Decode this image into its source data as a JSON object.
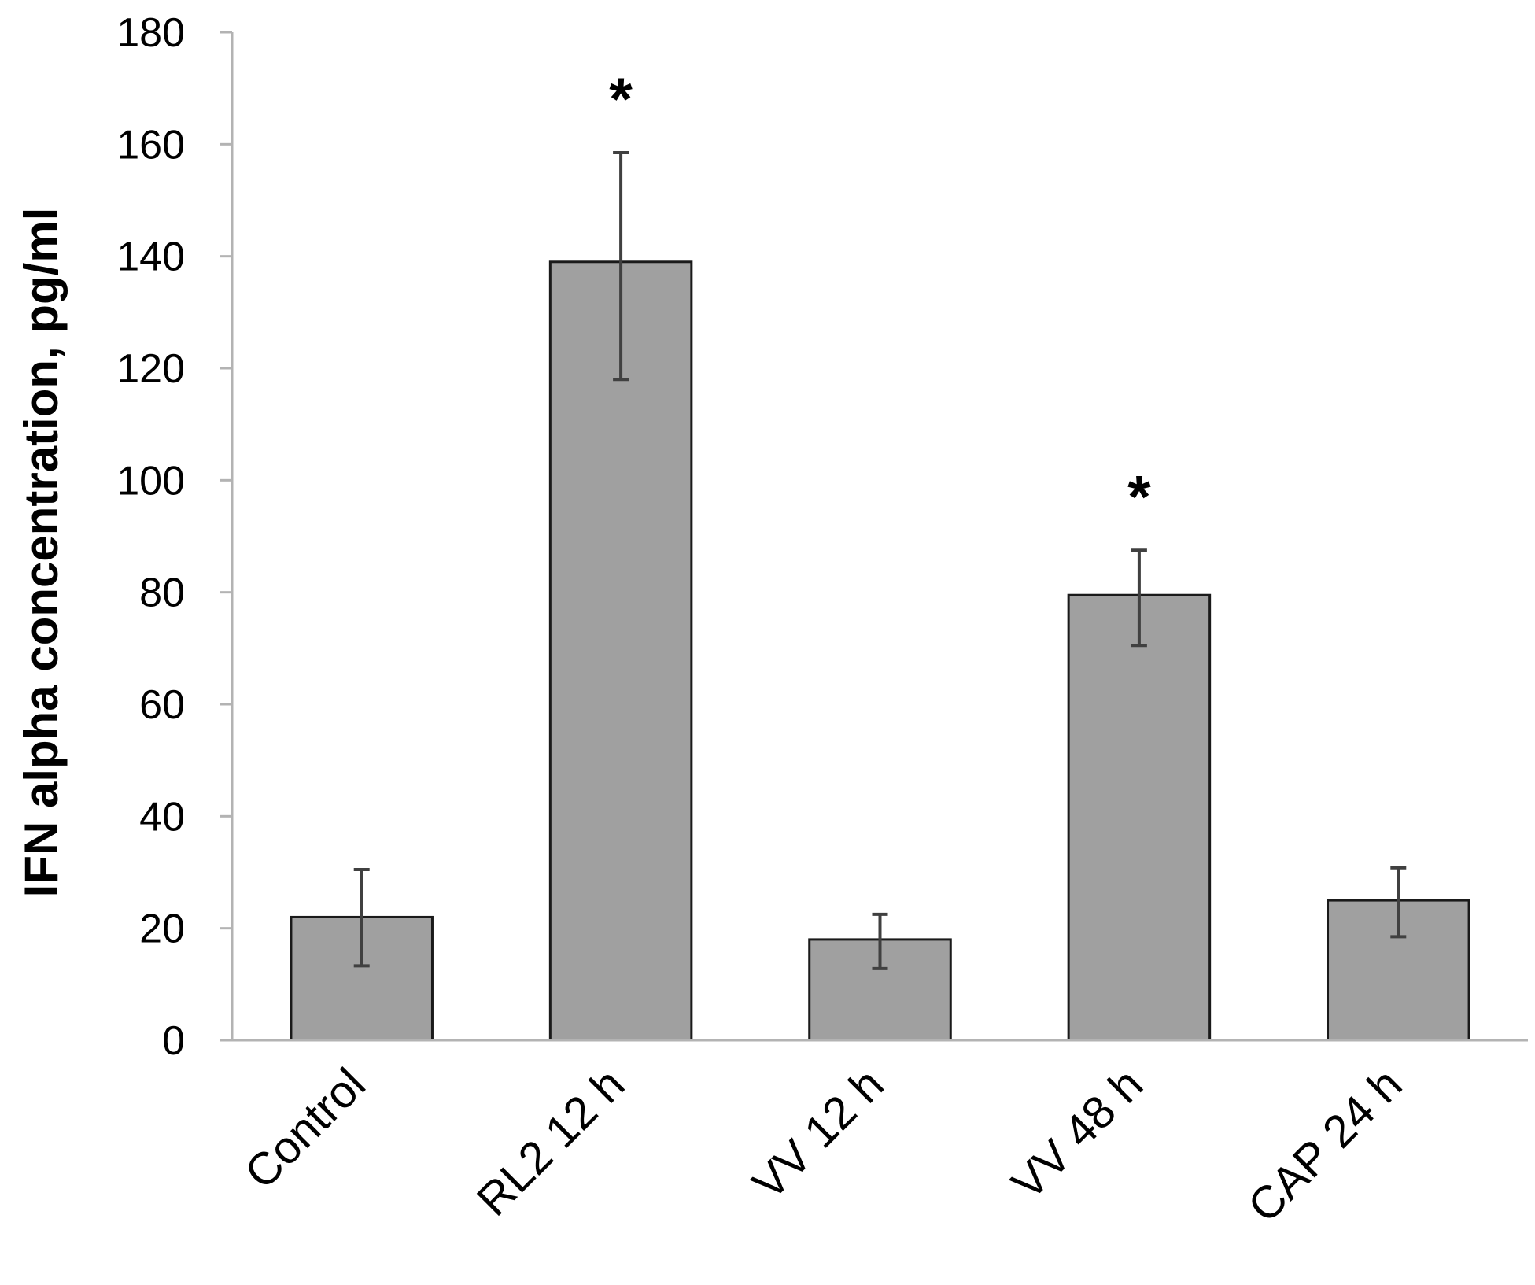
{
  "chart_data": {
    "type": "bar",
    "title": "",
    "xlabel": "",
    "ylabel": "IFN alpha concentration, pg/ml",
    "ylim": [
      0,
      180
    ],
    "yticks": [
      0,
      20,
      40,
      60,
      80,
      100,
      120,
      140,
      160,
      180
    ],
    "grid": false,
    "categories": [
      "Control",
      "RL2 12 h",
      "VV 12 h",
      "VV 48 h",
      "CAP 24 h"
    ],
    "values": [
      22,
      139,
      18,
      79.5,
      25
    ],
    "error_upper": [
      30.5,
      158.5,
      22.5,
      87.5,
      30.8
    ],
    "error_lower": [
      13.3,
      118,
      12.8,
      70.5,
      18.5
    ],
    "annotations": [
      "",
      "*",
      "",
      "*",
      ""
    ],
    "colors": {
      "bar_fill": "#a0a0a0",
      "bar_edge": "#1a1a1a",
      "error_bar": "#404040",
      "axis": "#b3b3b3"
    }
  }
}
